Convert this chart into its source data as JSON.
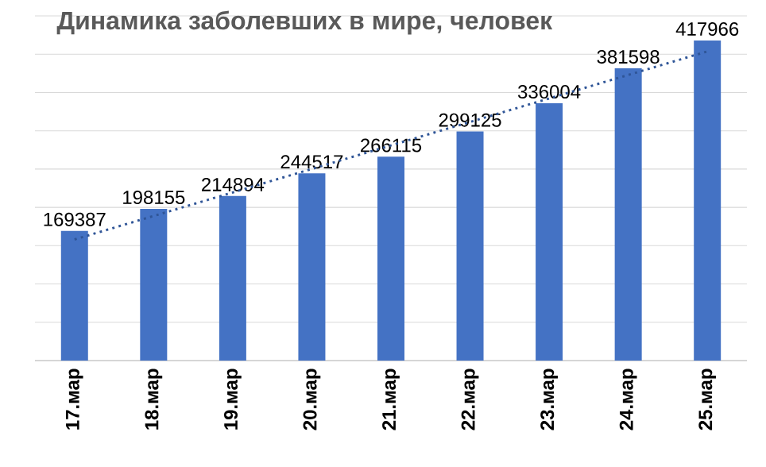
{
  "chart_data": {
    "type": "bar",
    "title": "Динамика заболевших в мире, человек",
    "categories": [
      "17.мар",
      "18.мар",
      "19.мар",
      "20.мар",
      "21.мар",
      "22.мар",
      "23.мар",
      "24.мар",
      "25.мар"
    ],
    "series": [
      {
        "color": "#4472c4",
        "values": [
          169387,
          198155,
          214894,
          244517,
          266115,
          299125,
          336004,
          381598,
          417966
        ],
        "value_labels": [
          "169387",
          "198155",
          "214894",
          "244517",
          "266115",
          "299125",
          "336004",
          "381598",
          "417966"
        ]
      },
      {
        "type": "line",
        "color": "#2f5597",
        "line_style": "dotted",
        "values": [
          158100,
          188800,
          219500,
          250200,
          280900,
          311500,
          342200,
          372900,
          403600
        ]
      }
    ],
    "ylim": [
      0,
      450000
    ],
    "yticks": [
      {
        "value": 0,
        "label": null
      },
      {
        "value": 50000,
        "label": null
      },
      {
        "value": 100000,
        "label": null
      },
      {
        "value": 150000,
        "label": null
      },
      {
        "value": 200000,
        "label": null
      },
      {
        "value": 250000,
        "label": null
      },
      {
        "value": 300000,
        "label": null
      },
      {
        "value": 350000,
        "label": null
      },
      {
        "value": 400000,
        "label": null
      },
      {
        "value": 450000,
        "label": null
      }
    ],
    "tick_labels": "x",
    "grid": "y"
  }
}
